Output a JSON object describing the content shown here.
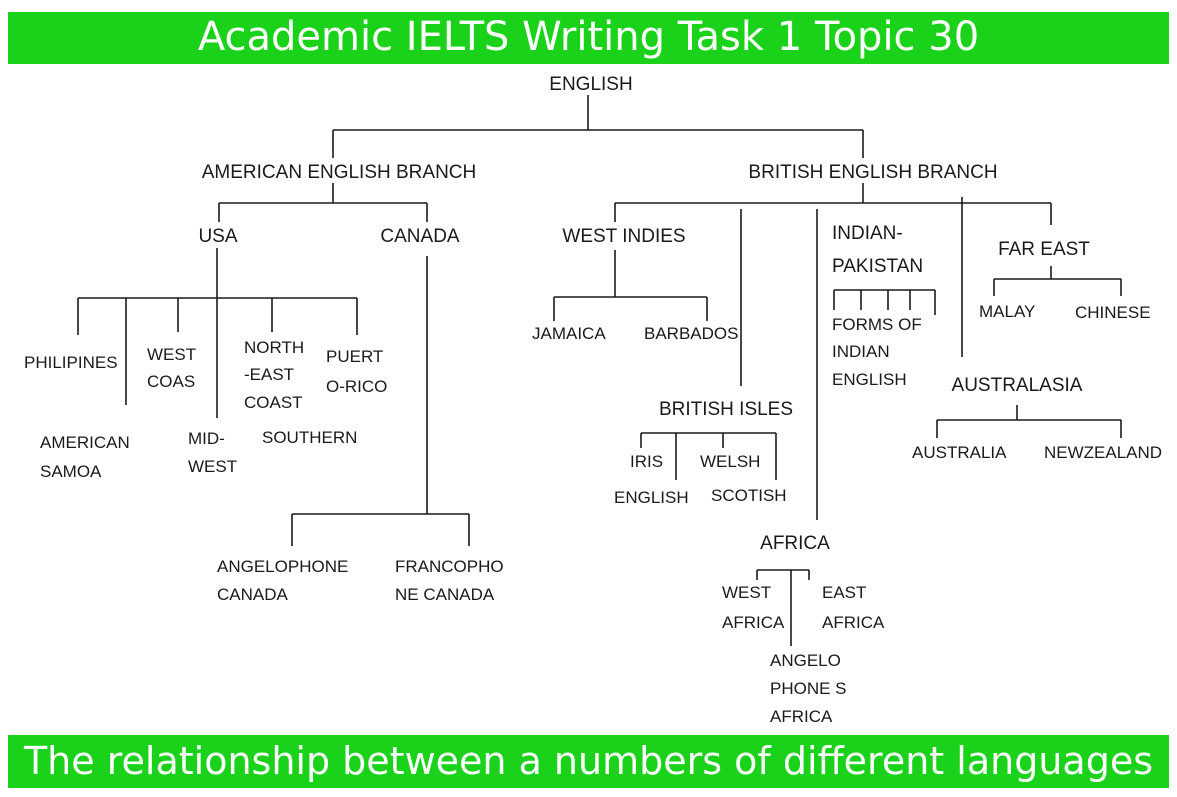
{
  "header": {
    "title": "Academic IELTS Writing Task 1 Topic 30"
  },
  "footer": {
    "caption": "The relationship between a numbers of different languages"
  },
  "tree": {
    "english": "ENGLISH",
    "american_branch": "AMERICAN ENGLISH BRANCH",
    "british_branch": "BRITISH ENGLISH BRANCH",
    "usa": "USA",
    "canada": "CANADA",
    "philipines": "PHILIPINES",
    "american_samoa": [
      "AMERICAN",
      "SAMOA"
    ],
    "west_coas": [
      "WEST",
      "COAS"
    ],
    "mid_west": [
      "MID-",
      "WEST"
    ],
    "north_east_coast": [
      "NORTH",
      "-EAST",
      "COAST"
    ],
    "southern": "SOUTHERN",
    "puerto_rico": [
      "PUERT",
      "O-RICO"
    ],
    "angelophone_canada": [
      "ANGELOPHONE",
      "CANADA"
    ],
    "francophone_canada": [
      "FRANCOPHO",
      "NE CANADA"
    ],
    "west_indies": "WEST INDIES",
    "jamaica": "JAMAICA",
    "barbados": "BARBADOS",
    "british_isles": "BRITISH ISLES",
    "iris": "IRIS",
    "welsh": "WELSH",
    "english_leaf": "ENGLISH",
    "scotish": "SCOTISH",
    "africa": "AFRICA",
    "west_africa": [
      "WEST",
      "AFRICA"
    ],
    "east_africa": [
      "EAST",
      "AFRICA"
    ],
    "angelophone_africa": [
      "ANGELO",
      "PHONE S",
      "AFRICA"
    ],
    "indian_pakistan": [
      "INDIAN-",
      "PAKISTAN"
    ],
    "forms_of_indian_english": [
      "FORMS OF",
      "INDIAN",
      "ENGLISH"
    ],
    "far_east": "FAR EAST",
    "malay": "MALAY",
    "chinese": "CHINESE",
    "australasia": "AUSTRALASIA",
    "australia": "AUSTRALIA",
    "newzealand": "NEWZEALAND"
  }
}
